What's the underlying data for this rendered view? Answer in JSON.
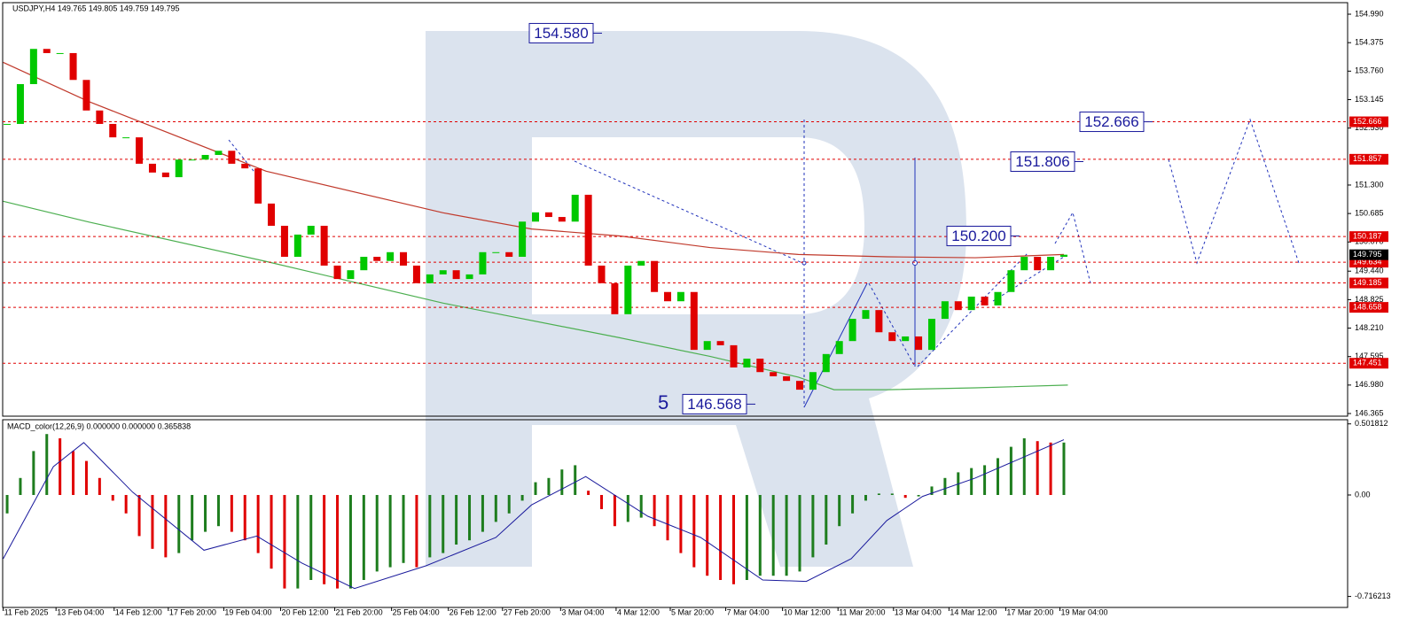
{
  "chart_data": [
    {
      "type": "candlestick",
      "title": "USDJPY,H4 149.765 149.805 149.759 149.795",
      "xlim": [
        -0.34,
        101.48
      ],
      "ylim": [
        146.308,
        155.239
      ],
      "yticks": [
        {
          "value": 154.99,
          "label": "154.990"
        },
        {
          "value": 154.375,
          "label": "154.375"
        },
        {
          "value": 153.76,
          "label": "153.760"
        },
        {
          "value": 153.145,
          "label": "153.145"
        },
        {
          "value": 152.53,
          "label": "152.530"
        },
        {
          "value": 151.3,
          "label": "151.300"
        },
        {
          "value": 150.685,
          "label": "150.685"
        },
        {
          "value": 150.07,
          "label": "150.070"
        },
        {
          "value": 149.44,
          "label": "149.440"
        },
        {
          "value": 148.825,
          "label": "148.825"
        },
        {
          "value": 148.21,
          "label": "148.210"
        },
        {
          "value": 147.595,
          "label": "147.595"
        },
        {
          "value": 146.98,
          "label": "146.980"
        },
        {
          "value": 146.365,
          "label": "146.365"
        }
      ],
      "closes": [
        152.62,
        153.48,
        154.24,
        154.15,
        154.15,
        153.57,
        152.91,
        152.62,
        152.33,
        152.33,
        151.76,
        151.57,
        151.47,
        151.85,
        151.85,
        151.95,
        152.04,
        151.76,
        151.66,
        150.9,
        150.42,
        149.75,
        150.23,
        150.42,
        149.56,
        149.27,
        149.46,
        149.75,
        149.66,
        149.85,
        149.56,
        149.18,
        149.37,
        149.46,
        149.27,
        149.37,
        149.85,
        149.85,
        149.75,
        150.51,
        150.71,
        150.61,
        150.51,
        151.09,
        149.56,
        149.18,
        148.51,
        149.56,
        149.66,
        148.99,
        148.79,
        148.99,
        147.74,
        147.93,
        147.84,
        147.36,
        147.55,
        147.26,
        147.17,
        147.07,
        146.88,
        147.26,
        147.65,
        147.93,
        148.41,
        148.6,
        148.12,
        147.93,
        148.03,
        147.74,
        148.41,
        148.79,
        148.6,
        148.89,
        148.7,
        148.99,
        149.46,
        149.75,
        149.46,
        149.75,
        149.795
      ],
      "up_color": "#00c800",
      "down_color": "#e00000",
      "moving_averages": [
        {
          "color": "#c0392b",
          "x": [
            -0.3,
            6.2,
            19.6,
            33.0,
            39.7,
            46.4,
            53.2,
            59.9,
            66.6,
            73.3,
            80
          ],
          "values": [
            153.95,
            153.1,
            151.6,
            150.7,
            150.35,
            150.2,
            149.95,
            149.8,
            149.75,
            149.73,
            149.8
          ]
        },
        {
          "color": "#4caf50",
          "x": [
            -0.3,
            6.2,
            19.6,
            33.0,
            46.4,
            53.2,
            59.9,
            62.6,
            66.6,
            73.3,
            80.3
          ],
          "values": [
            150.95,
            150.5,
            149.65,
            148.75,
            148.0,
            147.6,
            147.15,
            146.88,
            146.88,
            146.92,
            146.98
          ]
        }
      ],
      "levels": [
        152.666,
        151.857,
        150.187,
        149.634,
        149.185,
        148.658,
        147.451
      ],
      "level_color": "#e00000",
      "last_price": 149.795,
      "annotations": [
        {
          "value": 154.58,
          "label": "154.580"
        },
        {
          "value": 152.666,
          "label": "152.666"
        },
        {
          "value": 151.806,
          "label": "151.806"
        },
        {
          "value": 150.2,
          "label": "150.200"
        },
        {
          "value": 146.568,
          "label": "146.568"
        }
      ],
      "wave_label": "5"
    },
    {
      "type": "macd",
      "title": "MACD_color(12,26,9) 0.000000 0.000000 0.365838",
      "xlim": [
        -0.34,
        101.48
      ],
      "ylim": [
        -0.79375,
        0.53125
      ],
      "yticks": [
        0.501812,
        {
          "value": 0,
          "label": "0.00"
        },
        -0.716213
      ],
      "xticks": [
        {
          "value": -0.3,
          "label": "11 Feb 2025"
        },
        {
          "value": 3.7,
          "label": "13 Feb 04:00"
        },
        {
          "value": 8.1,
          "label": "14 Feb 12:00"
        },
        {
          "value": 12.2,
          "label": "17 Feb 20:00"
        },
        {
          "value": 16.4,
          "label": "19 Feb 04:00"
        },
        {
          "value": 20.7,
          "label": "20 Feb 12:00"
        },
        {
          "value": 24.8,
          "label": "21 Feb 20:00"
        },
        {
          "value": 29.1,
          "label": "25 Feb 04:00"
        },
        {
          "value": 33.4,
          "label": "26 Feb 12:00"
        },
        {
          "value": 37.5,
          "label": "27 Feb 20:00"
        },
        {
          "value": 41.9,
          "label": "3 Mar 04:00"
        },
        {
          "value": 46.1,
          "label": "4 Mar 12:00"
        },
        {
          "value": 50.2,
          "label": "5 Mar 20:00"
        },
        {
          "value": 54.4,
          "label": "7 Mar 04:00"
        },
        {
          "value": 58.7,
          "label": "10 Mar 12:00"
        },
        {
          "value": 62.9,
          "label": "11 Mar 20:00"
        },
        {
          "value": 67.1,
          "label": "13 Mar 04:00"
        },
        {
          "value": 71.3,
          "label": "14 Mar 12:00"
        },
        {
          "value": 75.6,
          "label": "17 Mar 20:00"
        },
        {
          "value": 79.7,
          "label": "19 Mar 04:00"
        }
      ],
      "histogram": [
        -0.13,
        0.12,
        0.31,
        0.43,
        0.4,
        0.31,
        0.24,
        0.12,
        -0.04,
        -0.13,
        -0.29,
        -0.38,
        -0.44,
        -0.41,
        -0.32,
        -0.26,
        -0.22,
        -0.26,
        -0.32,
        -0.41,
        -0.52,
        -0.66,
        -0.66,
        -0.6,
        -0.63,
        -0.66,
        -0.66,
        -0.6,
        -0.54,
        -0.51,
        -0.48,
        -0.51,
        -0.44,
        -0.41,
        -0.35,
        -0.32,
        -0.26,
        -0.19,
        -0.13,
        -0.04,
        0.09,
        0.12,
        0.18,
        0.21,
        0.03,
        -0.1,
        -0.22,
        -0.19,
        -0.16,
        -0.22,
        -0.32,
        -0.41,
        -0.51,
        -0.57,
        -0.6,
        -0.63,
        -0.6,
        -0.57,
        -0.57,
        -0.57,
        -0.54,
        -0.44,
        -0.35,
        -0.22,
        -0.13,
        -0.04,
        0.01,
        0.01,
        -0.02,
        -0.01,
        0.06,
        0.12,
        0.16,
        0.19,
        0.21,
        0.26,
        0.34,
        0.4,
        0.38,
        0.37,
        0.37
      ],
      "up_color": "#1e7d1e",
      "down_color": "#e00000",
      "signal": {
        "color": "#1a1a9c",
        "x": [
          -0.3,
          3.5,
          5.8,
          9.5,
          14.9,
          18.9,
          22.3,
          26.3,
          31.7,
          37.0,
          39.7,
          43.8,
          48.5,
          52.5,
          57.2,
          60.5,
          63.9,
          66.6,
          69.3,
          73.3,
          80
        ],
        "values": [
          -0.45,
          0.2,
          0.37,
          0.02,
          -0.39,
          -0.29,
          -0.48,
          -0.66,
          -0.5,
          -0.3,
          -0.07,
          0.13,
          -0.15,
          -0.3,
          -0.6,
          -0.61,
          -0.45,
          -0.18,
          -0.01,
          0.12,
          0.39
        ]
      }
    }
  ]
}
